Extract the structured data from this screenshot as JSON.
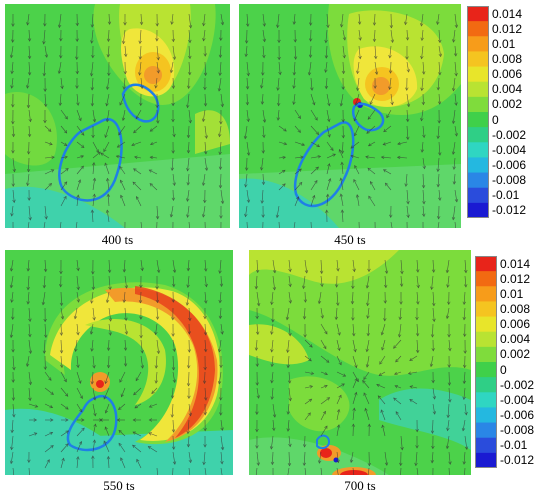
{
  "panels": [
    {
      "caption": "400 ts"
    },
    {
      "caption": "450 ts"
    },
    {
      "caption": "550 ts"
    },
    {
      "caption": "700 ts"
    }
  ],
  "colorbar": {
    "ticks": [
      "0.014",
      "0.012",
      "0.01",
      "0.008",
      "0.006",
      "0.004",
      "0.002",
      "0",
      "-0.002",
      "-0.004",
      "-0.006",
      "-0.008",
      "-0.01",
      "-0.012"
    ],
    "colors": [
      "#e8241a",
      "#f26a12",
      "#f79c1a",
      "#f5c420",
      "#e8e52a",
      "#b9e332",
      "#7fdc3c",
      "#3fd04a",
      "#2fcf86",
      "#2fd6c2",
      "#24b8e0",
      "#2a86e6",
      "#2a4cdc",
      "#1a1ad2"
    ]
  },
  "palette": {
    "background": "#4cd24a",
    "light_green": "#7cdc3c",
    "yellow": "#f0e63a",
    "orange": "#f29b2a",
    "red": "#e8421c",
    "cyan": "#3fd2ab",
    "outline": "#1f7fe6"
  }
}
